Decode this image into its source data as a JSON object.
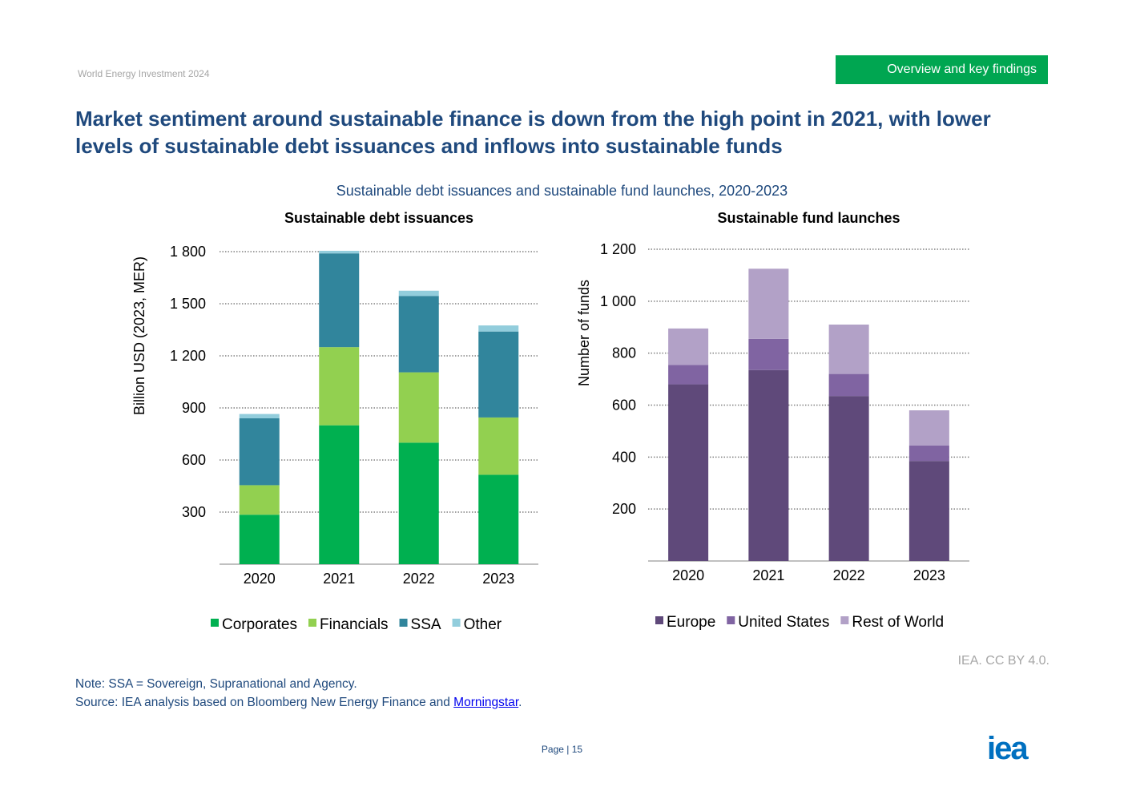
{
  "header": {
    "report": "World Energy Investment 2024",
    "section": "Overview and key findings"
  },
  "headline": "Market sentiment around sustainable finance is down from the high point in 2021, with lower levels of sustainable debt issuances and inflows into sustainable funds",
  "figure_title": "Sustainable debt issuances and sustainable fund launches, 2020-2023",
  "credit": "IEA. CC BY 4.0.",
  "note": "Note: SSA = Sovereign, Supranational and Agency.",
  "source": {
    "prefix": "Source: IEA analysis based on Bloomberg New Energy Finance and ",
    "link": "Morningstar",
    "suffix": "."
  },
  "page": "Page | 15",
  "logo": "iea",
  "chart_data": [
    {
      "type": "bar",
      "stacked": true,
      "title": "Sustainable debt issuances",
      "ylabel": "Billion USD (2023, MER)",
      "xlabel": "",
      "ylim": [
        0,
        1800
      ],
      "yticks": [
        300,
        600,
        900,
        1200,
        1500,
        1800
      ],
      "ytick_labels": [
        "300",
        "600",
        "900",
        "1 200",
        "1 500",
        "1 800"
      ],
      "grid": "dotted horizontal",
      "legend": "bottom",
      "categories": [
        "2020",
        "2021",
        "2022",
        "2023"
      ],
      "series": [
        {
          "name": "Corporates",
          "color": "#00b050",
          "values": [
            285,
            800,
            700,
            515
          ]
        },
        {
          "name": "Financials",
          "color": "#92d050",
          "values": [
            170,
            450,
            405,
            330
          ]
        },
        {
          "name": "SSA",
          "color": "#31859c",
          "values": [
            385,
            540,
            440,
            495
          ]
        },
        {
          "name": "Other",
          "color": "#92cddc",
          "values": [
            25,
            15,
            30,
            35
          ]
        }
      ]
    },
    {
      "type": "bar",
      "stacked": true,
      "title": "Sustainable fund launches",
      "ylabel": "Number of funds",
      "xlabel": "",
      "ylim": [
        0,
        1200
      ],
      "yticks": [
        200,
        400,
        600,
        800,
        1000,
        1200
      ],
      "ytick_labels": [
        "200",
        "400",
        "600",
        "800",
        "1 000",
        "1 200"
      ],
      "grid": "dotted horizontal",
      "legend": "bottom",
      "categories": [
        "2020",
        "2021",
        "2022",
        "2023"
      ],
      "series": [
        {
          "name": "Europe",
          "color": "#5f497a",
          "values": [
            680,
            735,
            635,
            385
          ]
        },
        {
          "name": "United States",
          "color": "#8064a2",
          "values": [
            75,
            120,
            85,
            60
          ]
        },
        {
          "name": "Rest of World",
          "color": "#b2a1c7",
          "values": [
            140,
            270,
            190,
            135
          ]
        }
      ]
    }
  ]
}
